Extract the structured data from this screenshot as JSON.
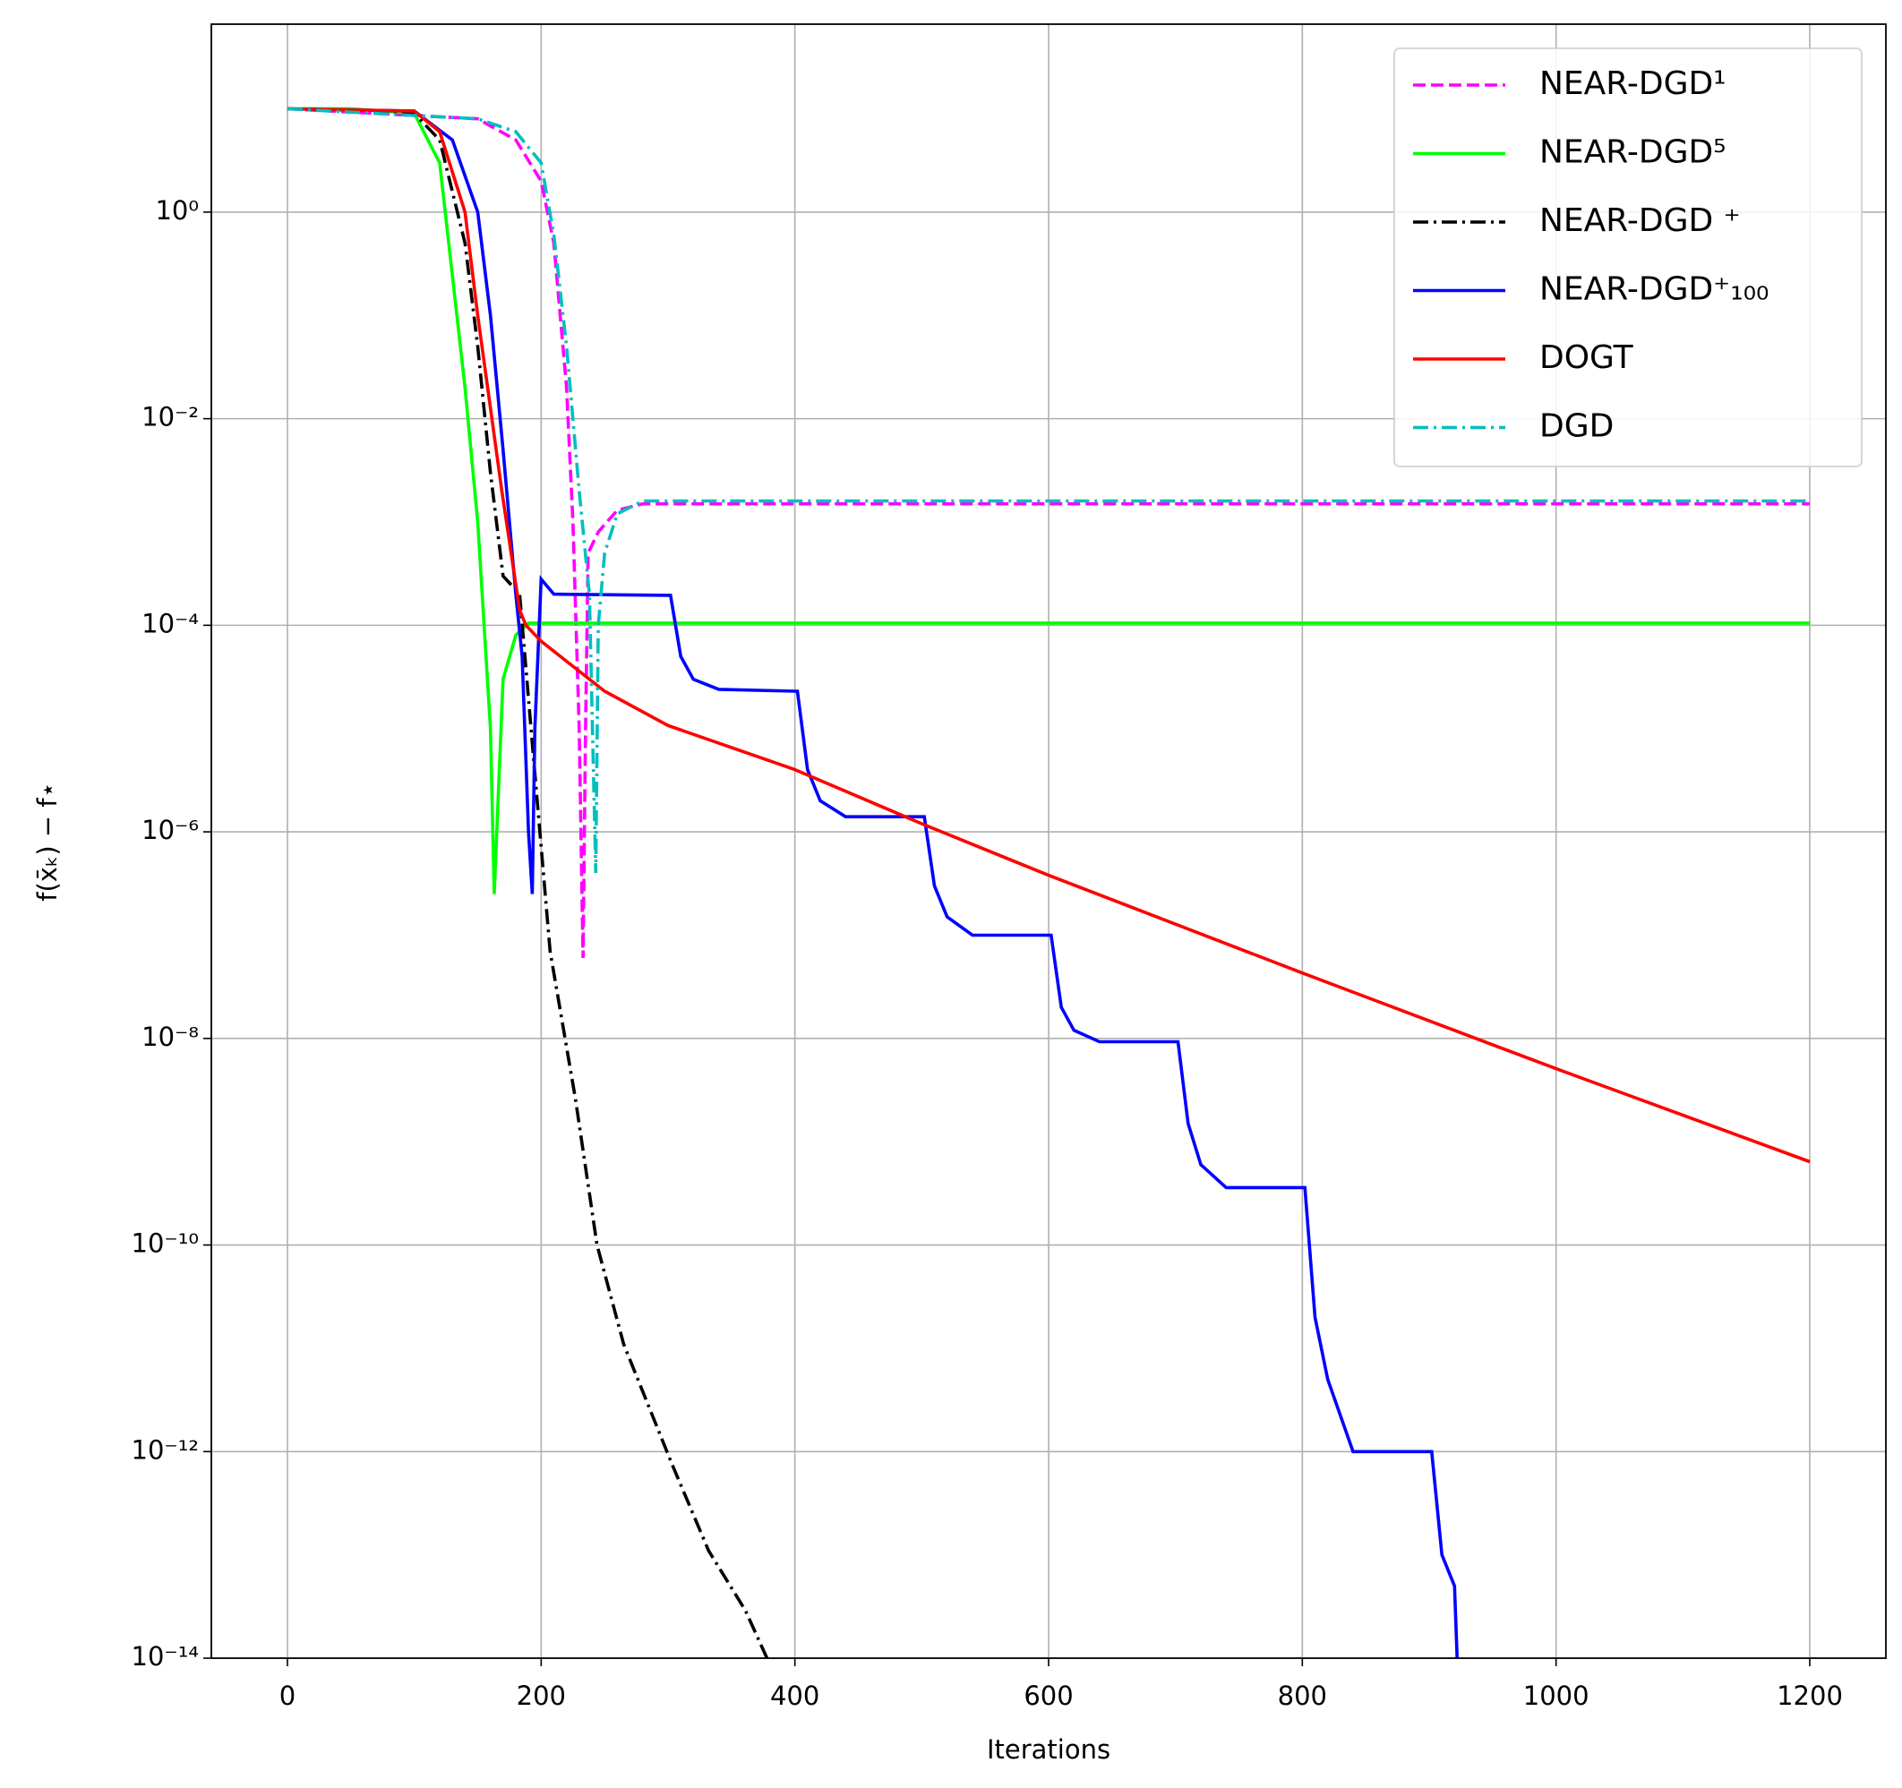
{
  "chart_data": {
    "type": "line",
    "x_label": "Iterations",
    "y_label": "f(x̄ₖ) − f⋆",
    "log_y": true,
    "grid": true,
    "legend": "upper right",
    "xlim": [
      -60,
      1260
    ],
    "xticks": [
      0,
      200,
      400,
      600,
      800,
      1000,
      1200
    ],
    "ylim": [
      1e-14,
      66
    ],
    "yticks": [
      {
        "value": 1,
        "label": "10⁰"
      },
      {
        "value": 0.01,
        "label": "10⁻²"
      },
      {
        "value": 0.0001,
        "label": "10⁻⁴"
      },
      {
        "value": 1e-06,
        "label": "10⁻⁶"
      },
      {
        "value": 1e-08,
        "label": "10⁻⁸"
      },
      {
        "value": 1e-10,
        "label": "10⁻¹⁰"
      },
      {
        "value": 1e-12,
        "label": "10⁻¹²"
      },
      {
        "value": 1e-14,
        "label": "10⁻¹⁴"
      }
    ],
    "series": [
      {
        "name": "NEAR-DGD¹",
        "color": "#ff00ff",
        "linestyle": "dashed",
        "x": [
          0,
          150,
          180,
          200,
          210,
          220,
          225,
          230,
          233,
          235,
          237,
          245,
          260,
          280,
          1200
        ],
        "values": [
          10,
          8,
          5,
          2,
          0.5,
          0.02,
          0.001,
          1e-05,
          6e-08,
          1e-05,
          0.0005,
          0.0008,
          0.0013,
          0.0015,
          0.0015
        ]
      },
      {
        "name": "NEAR-DGD⁵",
        "color": "#00ff00",
        "linestyle": "solid",
        "x": [
          0,
          50,
          100,
          120,
          140,
          150,
          160,
          163,
          170,
          180,
          190,
          1200
        ],
        "values": [
          10,
          10,
          9,
          3,
          0.02,
          0.001,
          1e-05,
          2.5e-07,
          3e-05,
          8e-05,
          0.000105,
          0.000105
        ]
      },
      {
        "name": "NEAR-DGD ⁺",
        "color": "#000000",
        "linestyle": "dashdot",
        "x": [
          0,
          100,
          120,
          140,
          150,
          160,
          170,
          183,
          192,
          207,
          227,
          244,
          265,
          303,
          332,
          361,
          378
        ],
        "values": [
          10,
          9,
          5,
          0.5,
          0.05,
          0.003,
          0.0003,
          0.0002,
          1e-05,
          7e-08,
          2.6e-09,
          1e-10,
          1.1e-11,
          7.6e-13,
          1.1e-13,
          2.9e-14,
          1e-14
        ]
      },
      {
        "name": "NEAR-DGD⁺₁₀₀",
        "color": "#0000ff",
        "linestyle": "solid",
        "x": [
          0,
          100,
          130,
          150,
          160,
          170,
          180,
          185,
          190,
          193,
          195,
          200,
          210,
          300,
          302,
          310,
          320,
          340,
          400,
          402,
          410,
          420,
          440,
          500,
          502,
          510,
          520,
          540,
          600,
          602,
          610,
          620,
          640,
          700,
          702,
          710,
          720,
          740,
          800,
          802,
          810,
          820,
          840,
          900,
          902,
          910,
          920,
          922
        ],
        "values": [
          10,
          9.5,
          5,
          1,
          0.1,
          0.005,
          0.0002,
          5e-05,
          1e-06,
          2.5e-07,
          1e-05,
          0.00028,
          0.0002,
          0.000195,
          0.000195,
          5e-05,
          3e-05,
          2.4e-05,
          2.3e-05,
          2.3e-05,
          4e-06,
          2e-06,
          1.4e-06,
          1.4e-06,
          1.4e-06,
          3e-07,
          1.5e-07,
          1e-07,
          1e-07,
          1e-07,
          2e-08,
          1.2e-08,
          9.3e-09,
          9.3e-09,
          9.3e-09,
          1.5e-09,
          6e-10,
          3.6e-10,
          3.6e-10,
          3.6e-10,
          2e-11,
          5e-12,
          1e-12,
          1e-12,
          1e-12,
          1e-13,
          5e-14,
          1e-14
        ]
      },
      {
        "name": "DOGT",
        "color": "#ff0000",
        "linestyle": "solid",
        "x": [
          0,
          100,
          120,
          140,
          150,
          169,
          183,
          188,
          200,
          250,
          300,
          400,
          500,
          600,
          800,
          1000,
          1200
        ],
        "values": [
          10,
          9.5,
          6,
          1,
          0.1,
          0.002,
          0.00014,
          0.0001,
          7e-05,
          2.3e-05,
          1.07e-05,
          4e-06,
          1.2e-06,
          3.8e-07,
          4.3e-08,
          5.1e-09,
          6.4e-10
        ]
      },
      {
        "name": "DGD",
        "color": "#00bfbf",
        "linestyle": "dashdot",
        "x": [
          0,
          150,
          180,
          200,
          210,
          220,
          230,
          238,
          243,
          245,
          250,
          260,
          280,
          1200
        ],
        "values": [
          10,
          8,
          6,
          3,
          0.6,
          0.05,
          0.002,
          0.0002,
          4e-07,
          0.0001,
          0.0005,
          0.0012,
          0.0016,
          0.0016
        ]
      }
    ]
  }
}
